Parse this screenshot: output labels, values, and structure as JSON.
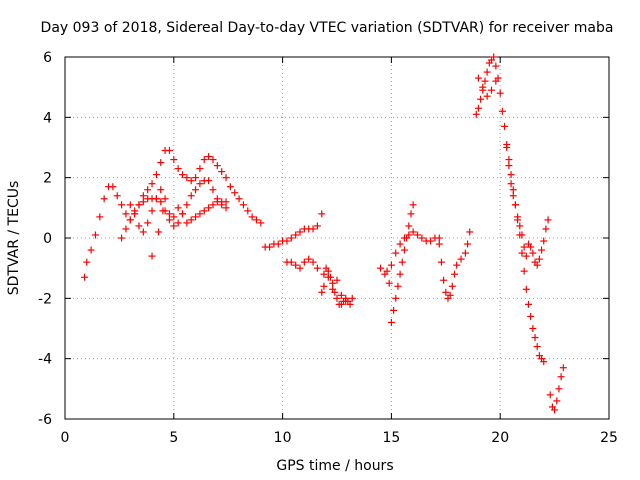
{
  "chart_data": {
    "type": "scatter",
    "title": "Day 093 of 2018, Sidereal Day-to-day VTEC variation (SDTVAR) for receiver maba",
    "xlabel": "GPS time / hours",
    "ylabel": "SDTVAR / TECUs",
    "xlim": [
      0,
      25
    ],
    "ylim": [
      -6,
      6
    ],
    "xticks": [
      0,
      5,
      10,
      15,
      20,
      25
    ],
    "yticks": [
      -6,
      -4,
      -2,
      0,
      2,
      4,
      6
    ],
    "grid": true,
    "marker": "+",
    "color": "#ff0000",
    "series": [
      {
        "name": "SDTVAR",
        "x": [
          0.9,
          1.0,
          1.2,
          1.4,
          1.6,
          1.8,
          2.0,
          2.2,
          2.4,
          2.6,
          2.8,
          3.0,
          3.2,
          3.4,
          3.6,
          3.8,
          4.0,
          4.2,
          4.4,
          4.6,
          4.8,
          5.0,
          5.2,
          5.4,
          5.6,
          5.8,
          6.0,
          6.2,
          6.4,
          6.6,
          6.8,
          7.0,
          7.2,
          7.4,
          7.6,
          7.8,
          8.0,
          8.2,
          8.4,
          8.6,
          8.8,
          9.0,
          2.6,
          2.8,
          3.0,
          3.2,
          3.4,
          3.6,
          3.8,
          4.0,
          4.2,
          4.4,
          4.6,
          4.8,
          5.0,
          5.2,
          5.4,
          5.6,
          5.8,
          6.0,
          6.2,
          6.4,
          6.6,
          6.8,
          7.0,
          7.2,
          7.4,
          3.0,
          3.2,
          3.4,
          3.6,
          3.8,
          4.0,
          4.2,
          4.4,
          4.6,
          4.8,
          5.0,
          5.2,
          5.4,
          5.6,
          5.8,
          6.0,
          6.2,
          6.4,
          6.6,
          6.8,
          7.0,
          7.2,
          7.4,
          4.0,
          4.3,
          4.5,
          9.2,
          9.4,
          9.6,
          9.8,
          10.0,
          10.2,
          10.4,
          10.6,
          10.8,
          11.0,
          11.2,
          11.4,
          11.6,
          11.8,
          10.2,
          10.4,
          10.6,
          10.8,
          11.0,
          11.2,
          11.4,
          11.6,
          11.8,
          11.9,
          12.0,
          12.1,
          12.2,
          12.3,
          12.4,
          12.5,
          12.6,
          12.7,
          12.8,
          12.9,
          13.0,
          13.1,
          13.2,
          11.9,
          12.1,
          12.3,
          12.5,
          12.7,
          12.9,
          14.5,
          14.7,
          14.9,
          15.0,
          15.1,
          15.2,
          15.3,
          15.4,
          15.5,
          15.6,
          15.7,
          15.8,
          15.9,
          16.0,
          14.8,
          15.0,
          15.2,
          15.4,
          15.6,
          15.8,
          16.0,
          16.2,
          16.4,
          16.6,
          16.8,
          17.0,
          17.2,
          17.2,
          17.3,
          17.4,
          17.5,
          17.6,
          17.7,
          17.8,
          17.9,
          18.0,
          18.2,
          18.4,
          18.5,
          18.6,
          18.9,
          19.0,
          19.1,
          19.2,
          19.3,
          19.4,
          19.5,
          19.6,
          19.7,
          19.8,
          19.9,
          19.0,
          19.2,
          19.4,
          19.6,
          19.8,
          20.0,
          20.1,
          20.2,
          20.3,
          20.4,
          20.5,
          20.6,
          20.7,
          20.8,
          20.9,
          21.0,
          21.1,
          21.2,
          21.3,
          21.4,
          21.5,
          21.6,
          21.7,
          21.8,
          21.9,
          22.0,
          20.3,
          20.4,
          20.5,
          20.6,
          20.7,
          20.8,
          20.9,
          21.0,
          21.1,
          21.2,
          21.3,
          21.4,
          21.5,
          21.6,
          21.7,
          21.8,
          21.9,
          22.0,
          22.1,
          22.2,
          22.3,
          22.4,
          22.5,
          22.6,
          22.7,
          22.8,
          22.9
        ],
        "y": [
          -1.3,
          -0.8,
          -0.4,
          0.1,
          0.7,
          1.3,
          1.7,
          1.7,
          1.4,
          1.1,
          0.8,
          0.6,
          0.8,
          1.1,
          1.4,
          1.6,
          1.8,
          2.1,
          2.5,
          2.9,
          2.9,
          2.6,
          2.3,
          2.1,
          2.0,
          1.9,
          2.0,
          2.3,
          2.6,
          2.7,
          2.6,
          2.4,
          2.2,
          2.0,
          1.7,
          1.5,
          1.3,
          1.1,
          0.9,
          0.7,
          0.6,
          0.5,
          0.0,
          0.3,
          0.6,
          0.9,
          1.1,
          1.2,
          1.3,
          1.3,
          1.3,
          1.2,
          0.9,
          0.6,
          0.4,
          0.5,
          0.8,
          1.1,
          1.4,
          1.6,
          1.8,
          1.9,
          1.9,
          1.6,
          1.3,
          1.1,
          1.0,
          1.1,
          0.8,
          0.4,
          0.2,
          0.5,
          0.9,
          1.3,
          1.6,
          1.3,
          0.8,
          0.7,
          1.0,
          0.8,
          0.5,
          0.6,
          0.7,
          0.8,
          0.9,
          1.0,
          1.1,
          1.2,
          1.2,
          1.2,
          -0.6,
          0.2,
          0.9,
          -0.3,
          -0.3,
          -0.2,
          -0.2,
          -0.1,
          -0.1,
          0.0,
          0.1,
          0.2,
          0.3,
          0.3,
          0.3,
          0.4,
          0.8,
          -0.8,
          -0.8,
          -0.9,
          -1.0,
          -0.8,
          -0.7,
          -0.8,
          -1.0,
          -1.8,
          -1.2,
          -1.0,
          -1.1,
          -1.3,
          -1.5,
          -1.8,
          -2.0,
          -2.2,
          -2.2,
          -2.1,
          -2.0,
          -2.1,
          -2.2,
          -2.0,
          -1.6,
          -1.3,
          -1.7,
          -1.4,
          -1.9,
          -2.1,
          -1.0,
          -1.2,
          -1.5,
          -2.8,
          -2.4,
          -2.0,
          -1.6,
          -1.2,
          -0.8,
          -0.4,
          0.0,
          0.4,
          0.8,
          1.1,
          -1.1,
          -0.9,
          -0.5,
          -0.2,
          0.0,
          0.1,
          0.2,
          0.1,
          0.0,
          -0.1,
          -0.1,
          0.0,
          -0.2,
          0.0,
          -0.8,
          -1.4,
          -1.8,
          -2.0,
          -1.9,
          -1.6,
          -1.2,
          -0.9,
          -0.7,
          -0.5,
          -0.2,
          0.2,
          4.1,
          4.3,
          4.6,
          4.9,
          5.2,
          5.5,
          5.8,
          5.9,
          6.0,
          5.7,
          5.3,
          5.3,
          5.0,
          4.7,
          4.9,
          5.2,
          4.8,
          4.2,
          3.7,
          3.1,
          2.6,
          2.1,
          1.6,
          1.1,
          0.6,
          0.1,
          -0.5,
          -1.1,
          -1.7,
          -2.2,
          -2.6,
          -3.0,
          -3.3,
          -3.6,
          -3.9,
          -4.0,
          -4.1,
          3.0,
          2.4,
          1.8,
          1.4,
          1.1,
          0.7,
          0.4,
          0.1,
          -0.3,
          -0.6,
          -0.2,
          -0.3,
          -0.5,
          -0.8,
          -0.9,
          -0.7,
          -0.4,
          -0.1,
          0.3,
          0.6,
          -5.2,
          -5.6,
          -5.7,
          -5.4,
          -5.0,
          -4.6,
          -4.3
        ]
      }
    ]
  }
}
